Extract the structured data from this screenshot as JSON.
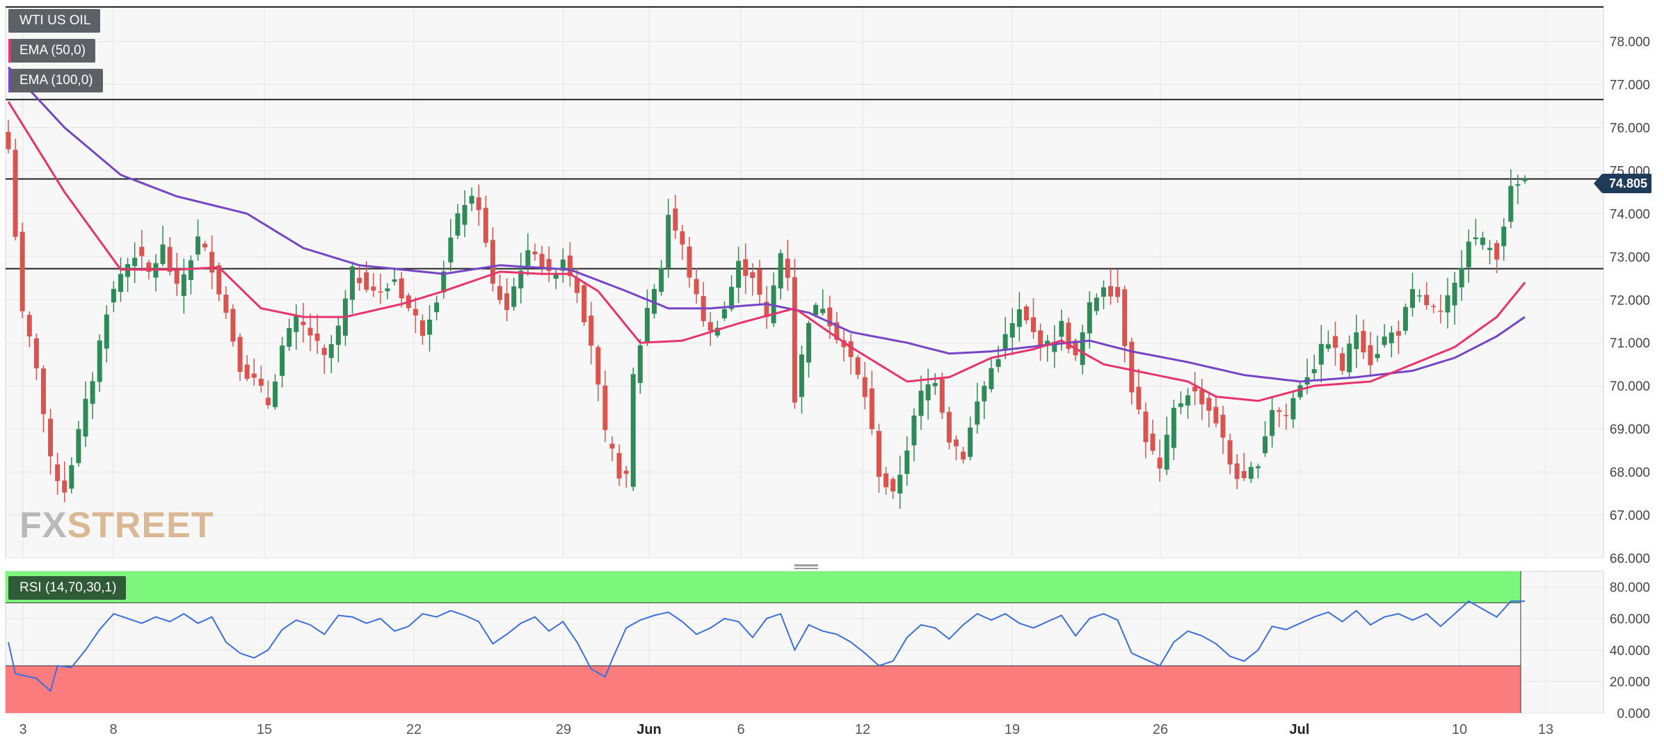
{
  "legend": {
    "symbol": "WTI US OIL",
    "ema50_label": "EMA (50,0)",
    "ema100_label": "EMA (100,0)",
    "ema50_color": "#e8336b",
    "ema100_color": "#7445c4"
  },
  "rsi_label": "RSI (14,70,30,1)",
  "last_price": "74.805",
  "watermark": {
    "part1": "FX",
    "part2": "STREET"
  },
  "chart_data": {
    "type": "candlestick",
    "x_axis": {
      "ticks": [
        "3",
        "8",
        "15",
        "22",
        "29",
        "Jun",
        "6",
        "12",
        "19",
        "26",
        "Jul",
        "10",
        "13"
      ]
    },
    "price_axis": {
      "range": [
        66,
        78.8
      ],
      "ticks": [
        "66.000",
        "67.000",
        "68.000",
        "69.000",
        "70.000",
        "71.000",
        "72.000",
        "73.000",
        "74.000",
        "75.000",
        "76.000",
        "77.000",
        "78.000"
      ]
    },
    "horizontal_levels": [
      78.8,
      76.65,
      74.805,
      72.72
    ],
    "anchors": [
      [
        0,
        75.5
      ],
      [
        2,
        71.6
      ],
      [
        4,
        70.5
      ],
      [
        6,
        68.2
      ],
      [
        8,
        67.6
      ],
      [
        10,
        68.9
      ],
      [
        12,
        70.2
      ],
      [
        14,
        71.8
      ],
      [
        16,
        72.6
      ],
      [
        18,
        73.1
      ],
      [
        20,
        72.6
      ],
      [
        22,
        73.2
      ],
      [
        24,
        72.2
      ],
      [
        27,
        73.4
      ],
      [
        29,
        72.8
      ],
      [
        31,
        71.7
      ],
      [
        33,
        70.5
      ],
      [
        35,
        70.1
      ],
      [
        37,
        69.6
      ],
      [
        39,
        70.9
      ],
      [
        41,
        71.5
      ],
      [
        43,
        71.2
      ],
      [
        45,
        70.6
      ],
      [
        47,
        71.3
      ],
      [
        49,
        72.6
      ],
      [
        51,
        72.4
      ],
      [
        53,
        72.1
      ],
      [
        55,
        72.5
      ],
      [
        57,
        71.8
      ],
      [
        59,
        71.3
      ],
      [
        61,
        72.1
      ],
      [
        63,
        73.4
      ],
      [
        65,
        74.3
      ],
      [
        67,
        74.2
      ],
      [
        69,
        72.3
      ],
      [
        71,
        71.8
      ],
      [
        73,
        72.8
      ],
      [
        75,
        73.2
      ],
      [
        77,
        72.5
      ],
      [
        79,
        73.0
      ],
      [
        81,
        72.3
      ],
      [
        83,
        71.0
      ],
      [
        85,
        68.8
      ],
      [
        87,
        68.0
      ],
      [
        88,
        67.8
      ],
      [
        89,
        70.2
      ],
      [
        91,
        71.8
      ],
      [
        93,
        72.8
      ],
      [
        94,
        74.0
      ],
      [
        96,
        73.2
      ],
      [
        98,
        72.0
      ],
      [
        100,
        71.2
      ],
      [
        102,
        71.8
      ],
      [
        104,
        72.8
      ],
      [
        106,
        72.6
      ],
      [
        108,
        71.5
      ],
      [
        110,
        73.1
      ],
      [
        111,
        72.6
      ],
      [
        112,
        69.7
      ],
      [
        114,
        71.6
      ],
      [
        116,
        71.9
      ],
      [
        118,
        71.2
      ],
      [
        120,
        70.6
      ],
      [
        122,
        69.8
      ],
      [
        124,
        68.0
      ],
      [
        126,
        67.4
      ],
      [
        128,
        68.6
      ],
      [
        130,
        69.8
      ],
      [
        132,
        70.2
      ],
      [
        134,
        68.8
      ],
      [
        136,
        68.4
      ],
      [
        138,
        69.6
      ],
      [
        140,
        70.4
      ],
      [
        142,
        71.1
      ],
      [
        144,
        71.7
      ],
      [
        146,
        71.2
      ],
      [
        148,
        70.9
      ],
      [
        150,
        71.4
      ],
      [
        152,
        70.6
      ],
      [
        154,
        71.8
      ],
      [
        156,
        72.4
      ],
      [
        158,
        72.1
      ],
      [
        160,
        70.0
      ],
      [
        162,
        68.8
      ],
      [
        164,
        68.0
      ],
      [
        166,
        69.4
      ],
      [
        168,
        69.9
      ],
      [
        170,
        69.7
      ],
      [
        172,
        69.2
      ],
      [
        174,
        68.2
      ],
      [
        176,
        67.7
      ],
      [
        178,
        68.3
      ],
      [
        180,
        69.5
      ],
      [
        182,
        69.3
      ],
      [
        184,
        70.1
      ],
      [
        186,
        70.5
      ],
      [
        188,
        71.1
      ],
      [
        190,
        70.4
      ],
      [
        192,
        71.3
      ],
      [
        194,
        70.6
      ],
      [
        196,
        71.1
      ],
      [
        198,
        71.3
      ],
      [
        200,
        72.1
      ],
      [
        202,
        71.9
      ],
      [
        204,
        71.6
      ],
      [
        206,
        72.3
      ],
      [
        208,
        73.5
      ],
      [
        210,
        73.3
      ],
      [
        212,
        73.1
      ],
      [
        214,
        74.5
      ],
      [
        216,
        74.8
      ]
    ],
    "ema50_points": [
      [
        0,
        76.6
      ],
      [
        8,
        74.5
      ],
      [
        16,
        72.7
      ],
      [
        24,
        72.7
      ],
      [
        30,
        72.75
      ],
      [
        36,
        71.8
      ],
      [
        42,
        71.6
      ],
      [
        48,
        71.6
      ],
      [
        56,
        71.9
      ],
      [
        62,
        72.2
      ],
      [
        70,
        72.65
      ],
      [
        76,
        72.6
      ],
      [
        80,
        72.6
      ],
      [
        84,
        72.2
      ],
      [
        90,
        71.0
      ],
      [
        96,
        71.05
      ],
      [
        104,
        71.45
      ],
      [
        112,
        71.8
      ],
      [
        120,
        70.9
      ],
      [
        128,
        70.1
      ],
      [
        134,
        70.2
      ],
      [
        140,
        70.65
      ],
      [
        146,
        70.85
      ],
      [
        150,
        71.05
      ],
      [
        156,
        70.5
      ],
      [
        162,
        70.3
      ],
      [
        168,
        70.1
      ],
      [
        172,
        69.75
      ],
      [
        178,
        69.65
      ],
      [
        186,
        70.0
      ],
      [
        194,
        70.1
      ],
      [
        200,
        70.5
      ],
      [
        206,
        70.9
      ],
      [
        212,
        71.6
      ],
      [
        216,
        72.4
      ]
    ],
    "ema100_points": [
      [
        0,
        77.4
      ],
      [
        8,
        76.0
      ],
      [
        16,
        74.9
      ],
      [
        24,
        74.4
      ],
      [
        34,
        74.0
      ],
      [
        42,
        73.2
      ],
      [
        50,
        72.8
      ],
      [
        56,
        72.7
      ],
      [
        62,
        72.6
      ],
      [
        70,
        72.8
      ],
      [
        80,
        72.7
      ],
      [
        88,
        72.2
      ],
      [
        94,
        71.8
      ],
      [
        100,
        71.8
      ],
      [
        108,
        71.9
      ],
      [
        114,
        71.7
      ],
      [
        120,
        71.25
      ],
      [
        128,
        71.0
      ],
      [
        134,
        70.75
      ],
      [
        140,
        70.8
      ],
      [
        148,
        70.95
      ],
      [
        154,
        71.05
      ],
      [
        160,
        70.8
      ],
      [
        168,
        70.55
      ],
      [
        176,
        70.25
      ],
      [
        184,
        70.1
      ],
      [
        192,
        70.2
      ],
      [
        200,
        70.35
      ],
      [
        206,
        70.65
      ],
      [
        212,
        71.15
      ],
      [
        216,
        71.6
      ]
    ],
    "rsi": {
      "range": [
        0,
        90
      ],
      "ticks": [
        "0.000",
        "20.000",
        "40.000",
        "60.000",
        "80.000"
      ],
      "overbought": 70,
      "oversold": 30,
      "points": [
        [
          0,
          45
        ],
        [
          1,
          25
        ],
        [
          4,
          22
        ],
        [
          6,
          14
        ],
        [
          7,
          30
        ],
        [
          9,
          29
        ],
        [
          11,
          40
        ],
        [
          13,
          53
        ],
        [
          15,
          63
        ],
        [
          17,
          60
        ],
        [
          19,
          57
        ],
        [
          21,
          61
        ],
        [
          23,
          58
        ],
        [
          25,
          63
        ],
        [
          27,
          57
        ],
        [
          29,
          61
        ],
        [
          31,
          45
        ],
        [
          33,
          38
        ],
        [
          35,
          35
        ],
        [
          37,
          40
        ],
        [
          39,
          53
        ],
        [
          41,
          59
        ],
        [
          43,
          56
        ],
        [
          45,
          50
        ],
        [
          47,
          62
        ],
        [
          49,
          61
        ],
        [
          51,
          57
        ],
        [
          53,
          60
        ],
        [
          55,
          52
        ],
        [
          57,
          55
        ],
        [
          59,
          63
        ],
        [
          61,
          61
        ],
        [
          63,
          65
        ],
        [
          65,
          62
        ],
        [
          67,
          58
        ],
        [
          69,
          44
        ],
        [
          71,
          50
        ],
        [
          73,
          57
        ],
        [
          75,
          61
        ],
        [
          77,
          52
        ],
        [
          79,
          58
        ],
        [
          81,
          45
        ],
        [
          83,
          28
        ],
        [
          85,
          23
        ],
        [
          86,
          34
        ],
        [
          88,
          54
        ],
        [
          90,
          59
        ],
        [
          92,
          62
        ],
        [
          94,
          64
        ],
        [
          96,
          58
        ],
        [
          98,
          50
        ],
        [
          100,
          54
        ],
        [
          102,
          60
        ],
        [
          104,
          58
        ],
        [
          106,
          48
        ],
        [
          108,
          60
        ],
        [
          110,
          63
        ],
        [
          112,
          40
        ],
        [
          114,
          56
        ],
        [
          116,
          52
        ],
        [
          118,
          50
        ],
        [
          120,
          45
        ],
        [
          122,
          38
        ],
        [
          124,
          30
        ],
        [
          126,
          33
        ],
        [
          128,
          48
        ],
        [
          130,
          56
        ],
        [
          132,
          54
        ],
        [
          134,
          47
        ],
        [
          136,
          56
        ],
        [
          138,
          63
        ],
        [
          140,
          59
        ],
        [
          142,
          63
        ],
        [
          144,
          57
        ],
        [
          146,
          54
        ],
        [
          148,
          58
        ],
        [
          150,
          62
        ],
        [
          152,
          49
        ],
        [
          154,
          60
        ],
        [
          156,
          63
        ],
        [
          158,
          59
        ],
        [
          160,
          38
        ],
        [
          162,
          34
        ],
        [
          164,
          30
        ],
        [
          166,
          45
        ],
        [
          168,
          52
        ],
        [
          170,
          49
        ],
        [
          172,
          44
        ],
        [
          174,
          36
        ],
        [
          176,
          33
        ],
        [
          178,
          40
        ],
        [
          180,
          55
        ],
        [
          182,
          53
        ],
        [
          184,
          57
        ],
        [
          186,
          61
        ],
        [
          188,
          64
        ],
        [
          190,
          58
        ],
        [
          192,
          65
        ],
        [
          194,
          56
        ],
        [
          196,
          61
        ],
        [
          198,
          63
        ],
        [
          200,
          59
        ],
        [
          202,
          63
        ],
        [
          204,
          55
        ],
        [
          206,
          63
        ],
        [
          208,
          71
        ],
        [
          210,
          66
        ],
        [
          212,
          61
        ],
        [
          214,
          71
        ],
        [
          216,
          71
        ]
      ]
    }
  }
}
